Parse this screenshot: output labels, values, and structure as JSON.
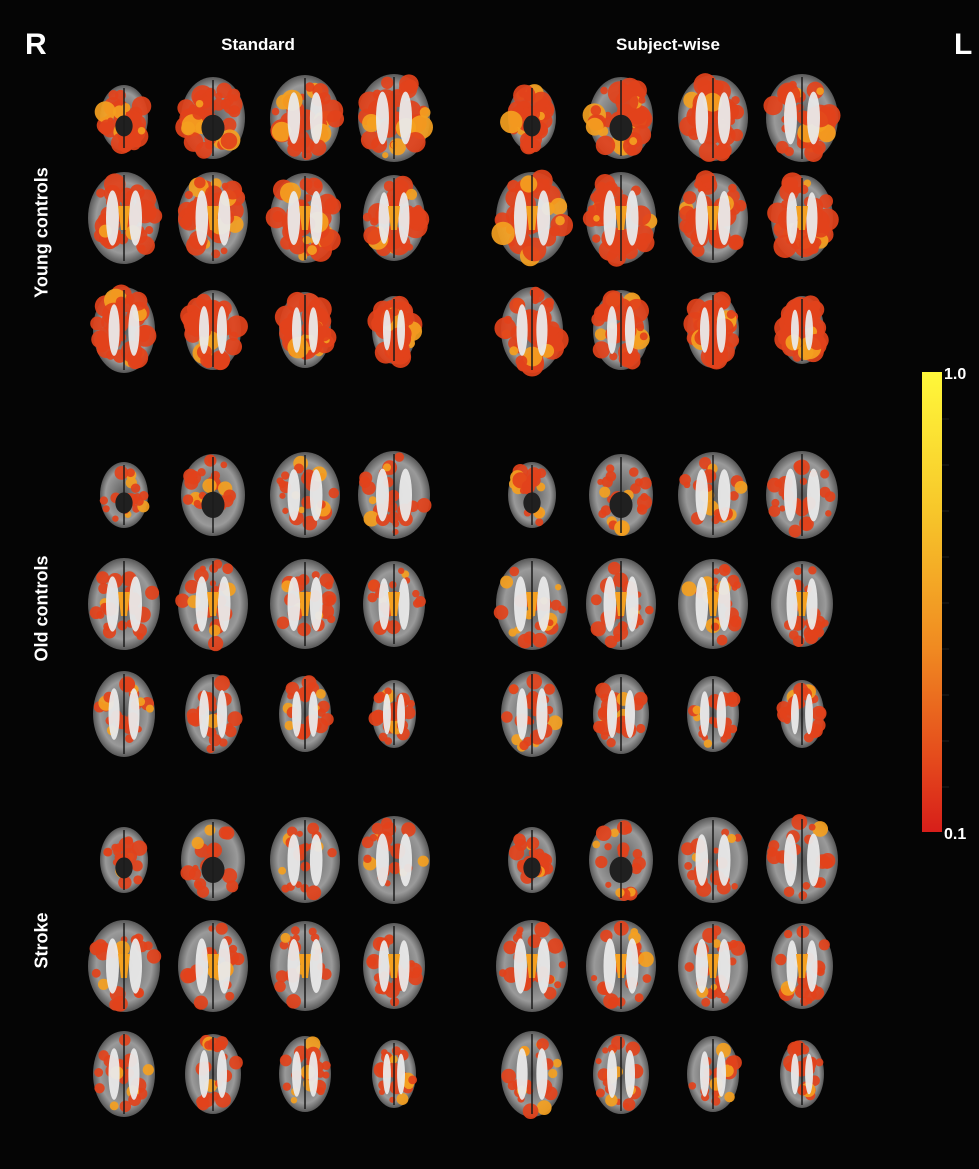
{
  "orientation": {
    "right": "R",
    "left": "L"
  },
  "columns": [
    "Standard",
    "Subject-wise"
  ],
  "groups": [
    {
      "label": "Young controls",
      "overlay_density": 0.95
    },
    {
      "label": "Old controls",
      "overlay_density": 0.55
    },
    {
      "label": "Stroke",
      "overlay_density": 0.5
    }
  ],
  "colorbar": {
    "max_label": "1.0",
    "min_label": "0.1",
    "colors": [
      "#fff83a",
      "#f7c72a",
      "#f08a21",
      "#e4481c",
      "#d71e1a"
    ]
  },
  "colors": {
    "background": "#050505",
    "overlay": "#e2421b",
    "overlay_hot": "#f4a020",
    "brain": "#8f8f8f",
    "white_matter": "#e9e9e9"
  },
  "slices_per_row": 4,
  "rows_per_group": 3
}
